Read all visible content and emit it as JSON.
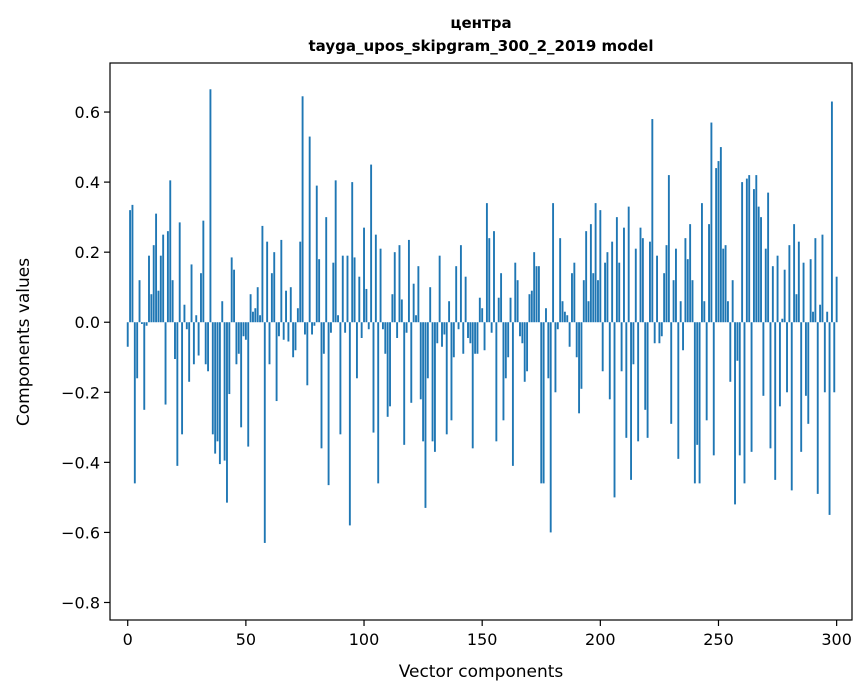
{
  "chart_data": {
    "type": "bar",
    "title": "центра",
    "subtitle": "tayga_upos_skipgram_300_2_2019 model",
    "xlabel": "Vector components",
    "ylabel": "Components values",
    "xlim": [
      -7.5,
      306.5
    ],
    "ylim": [
      -0.85,
      0.74
    ],
    "xticks": [
      0,
      50,
      100,
      150,
      200,
      250,
      300
    ],
    "yticks": [
      -0.8,
      -0.6,
      -0.4,
      -0.2,
      0.0,
      0.2,
      0.4,
      0.6
    ],
    "ytick_labels": [
      "−0.8",
      "−0.6",
      "−0.4",
      "−0.2",
      "0.0",
      "0.2",
      "0.4",
      "0.6"
    ],
    "grid": false,
    "bar_color": "#1f77b4",
    "values": [
      -0.07,
      0.32,
      0.335,
      -0.46,
      -0.16,
      0.12,
      -0.005,
      -0.25,
      -0.01,
      0.19,
      0.08,
      0.22,
      0.31,
      0.09,
      0.19,
      0.25,
      -0.235,
      0.26,
      0.405,
      0.12,
      -0.105,
      -0.41,
      0.285,
      -0.32,
      0.05,
      -0.02,
      -0.17,
      0.165,
      -0.12,
      0.02,
      -0.095,
      0.14,
      0.29,
      -0.12,
      -0.14,
      0.665,
      -0.32,
      -0.375,
      -0.34,
      -0.405,
      0.06,
      -0.395,
      -0.515,
      -0.205,
      0.185,
      0.15,
      -0.12,
      -0.09,
      -0.3,
      -0.04,
      -0.05,
      -0.355,
      0.08,
      0.03,
      0.04,
      0.1,
      0.02,
      0.275,
      -0.63,
      0.23,
      -0.12,
      0.14,
      0.2,
      -0.225,
      -0.04,
      0.235,
      -0.05,
      0.09,
      -0.055,
      0.1,
      -0.1,
      -0.08,
      0.04,
      0.23,
      0.645,
      -0.035,
      -0.18,
      0.53,
      -0.035,
      -0.01,
      0.39,
      0.18,
      -0.36,
      -0.09,
      0.3,
      -0.465,
      -0.03,
      0.17,
      0.405,
      0.02,
      -0.32,
      0.19,
      -0.03,
      0.19,
      -0.58,
      0.4,
      0.185,
      -0.16,
      0.13,
      -0.045,
      0.27,
      0.095,
      -0.02,
      0.45,
      -0.315,
      0.25,
      -0.46,
      0.21,
      -0.02,
      -0.09,
      -0.27,
      -0.24,
      0.08,
      0.2,
      -0.045,
      0.22,
      0.065,
      -0.35,
      -0.03,
      0.235,
      -0.23,
      0.11,
      0.02,
      0.16,
      -0.22,
      -0.34,
      -0.53,
      -0.16,
      0.1,
      -0.34,
      -0.37,
      -0.06,
      0.19,
      -0.07,
      -0.035,
      -0.32,
      0.06,
      -0.28,
      -0.1,
      0.16,
      -0.02,
      0.22,
      -0.09,
      0.13,
      -0.045,
      -0.06,
      -0.36,
      -0.09,
      -0.09,
      0.07,
      0.04,
      -0.08,
      0.34,
      0.24,
      -0.03,
      0.26,
      -0.34,
      0.07,
      0.14,
      -0.28,
      -0.16,
      -0.1,
      0.07,
      -0.41,
      0.17,
      0.12,
      -0.04,
      -0.06,
      -0.17,
      -0.14,
      0.08,
      0.09,
      0.2,
      0.16,
      0.16,
      -0.46,
      -0.46,
      0.04,
      -0.16,
      -0.6,
      0.34,
      -0.2,
      -0.02,
      0.24,
      0.06,
      0.03,
      0.02,
      -0.07,
      0.14,
      0.17,
      -0.1,
      -0.26,
      -0.19,
      0.12,
      0.26,
      0.06,
      0.28,
      0.14,
      0.34,
      0.12,
      0.32,
      -0.14,
      0.17,
      0.2,
      -0.22,
      0.23,
      -0.5,
      0.3,
      0.17,
      -0.14,
      0.27,
      -0.33,
      0.33,
      -0.45,
      -0.12,
      0.21,
      -0.34,
      0.27,
      0.24,
      -0.25,
      -0.33,
      0.23,
      0.58,
      -0.06,
      0.19,
      -0.06,
      -0.04,
      0.14,
      0.22,
      0.42,
      -0.29,
      0.12,
      0.21,
      -0.39,
      0.06,
      -0.08,
      0.24,
      0.18,
      0.28,
      0.12,
      -0.46,
      -0.35,
      -0.46,
      0.34,
      0.06,
      -0.28,
      0.28,
      0.57,
      -0.38,
      0.44,
      0.46,
      0.5,
      0.21,
      0.22,
      0.06,
      -0.17,
      0.12,
      -0.52,
      -0.11,
      -0.38,
      0.4,
      -0.46,
      0.41,
      0.42,
      -0.37,
      0.38,
      0.42,
      0.33,
      0.3,
      -0.21,
      0.21,
      0.37,
      -0.36,
      0.16,
      -0.45,
      0.19,
      -0.24,
      0.01,
      0.15,
      -0.2,
      0.22,
      -0.48,
      0.28,
      0.08,
      0.23,
      -0.37,
      0.17,
      -0.21,
      -0.29,
      0.18,
      0.03,
      0.24,
      -0.49,
      0.05,
      0.25,
      -0.2,
      0.03,
      -0.55,
      0.63,
      -0.2,
      0.13
    ]
  }
}
